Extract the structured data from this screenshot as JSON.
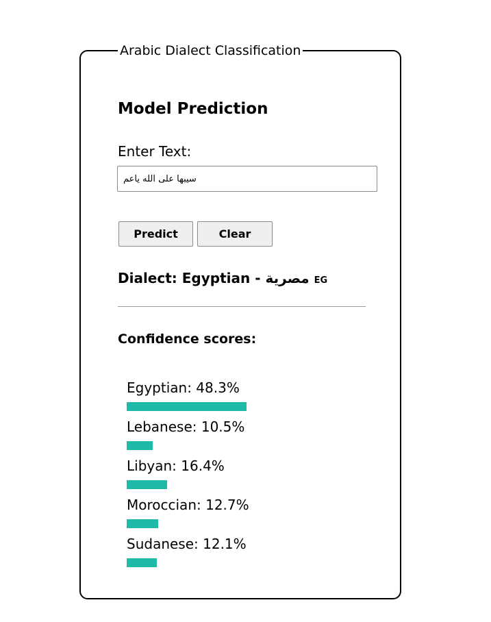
{
  "fieldset": {
    "legend": "Arabic Dialect Classification"
  },
  "prediction": {
    "heading": "Model Prediction",
    "input_label": "Enter Text:",
    "input_value": "سيبها على الله ياعم"
  },
  "buttons": {
    "predict_label": "Predict",
    "clear_label": "Clear"
  },
  "result": {
    "prefix": "Dialect:",
    "dialect_en": "Egyptian",
    "separator": "-",
    "dialect_ar": "مصرية",
    "code": "EG"
  },
  "confidence": {
    "heading": "Confidence scores:",
    "bar_color": "#20b9a8",
    "scores": [
      {
        "name": "Egyptian",
        "value": 48.3,
        "label": "Egyptian: 48.3%"
      },
      {
        "name": "Lebanese",
        "value": 10.5,
        "label": "Lebanese: 10.5%"
      },
      {
        "name": "Libyan",
        "value": 16.4,
        "label": "Libyan: 16.4%"
      },
      {
        "name": "Moroccian",
        "value": 12.7,
        "label": "Moroccian: 12.7%"
      },
      {
        "name": "Sudanese",
        "value": 12.1,
        "label": "Sudanese: 12.1%"
      }
    ]
  }
}
